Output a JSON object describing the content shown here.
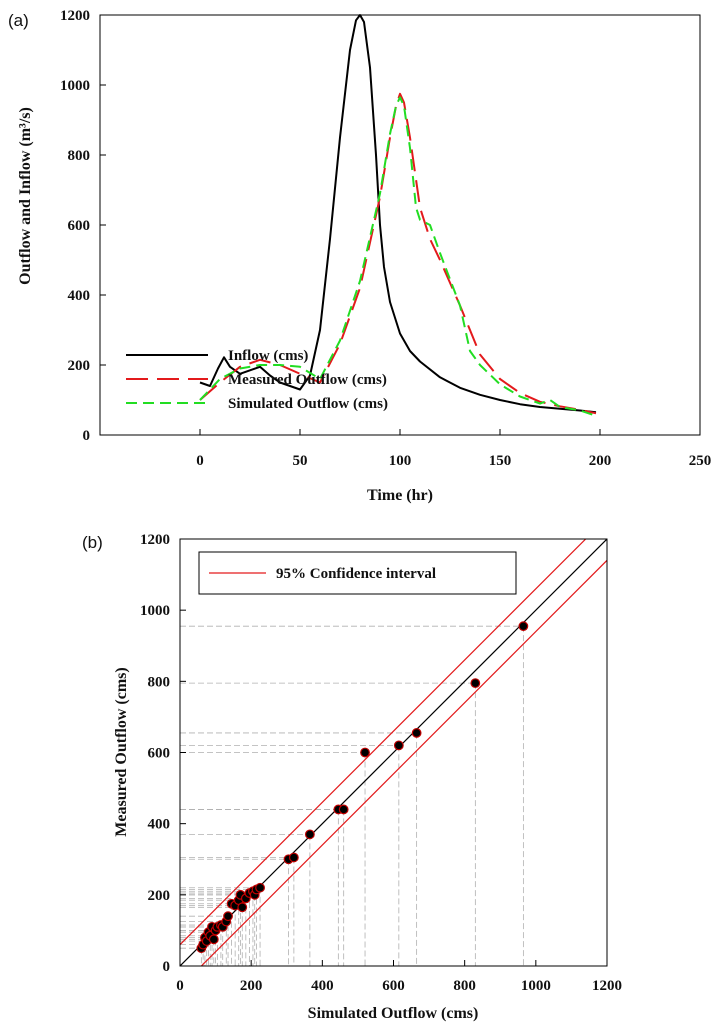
{
  "chart_data": [
    {
      "panel_label": "(a)",
      "type": "line",
      "xlabel": "Time (hr)",
      "ylabel": "Outflow and Inflow (m³/s)",
      "xlim": [
        -50,
        250
      ],
      "ylim": [
        0,
        1200
      ],
      "xticks": [
        0,
        50,
        100,
        150,
        200,
        250
      ],
      "yticks": [
        0,
        200,
        400,
        600,
        800,
        1000,
        1200
      ],
      "grid": false,
      "legend": "bottom-left",
      "series": [
        {
          "name": "Inflow (cms)",
          "color": "#000000",
          "style": "solid",
          "x": [
            0,
            5,
            9,
            12,
            15,
            20,
            25,
            30,
            35,
            40,
            45,
            50,
            55,
            60,
            65,
            70,
            75,
            78,
            80,
            82,
            85,
            88,
            90,
            92,
            95,
            100,
            105,
            110,
            120,
            130,
            140,
            150,
            160,
            170,
            180,
            190,
            198
          ],
          "y": [
            150,
            140,
            190,
            222,
            195,
            175,
            185,
            195,
            170,
            150,
            140,
            130,
            170,
            300,
            560,
            850,
            1100,
            1185,
            1200,
            1180,
            1050,
            800,
            600,
            480,
            380,
            290,
            240,
            210,
            165,
            135,
            115,
            100,
            88,
            80,
            75,
            70,
            65
          ]
        },
        {
          "name": "Measured Outflow (cms)",
          "color": "#e31a1c",
          "style": "long-dash",
          "x": [
            0,
            10,
            20,
            30,
            40,
            50,
            60,
            70,
            80,
            90,
            95,
            98,
            100,
            102,
            105,
            110,
            115,
            120,
            130,
            140,
            150,
            160,
            170,
            180,
            190,
            198
          ],
          "y": [
            100,
            150,
            195,
            215,
            200,
            175,
            150,
            260,
            420,
            680,
            850,
            940,
            975,
            950,
            850,
            650,
            560,
            500,
            370,
            230,
            160,
            120,
            95,
            82,
            72,
            62
          ]
        },
        {
          "name": "Simulated Outflow (cms)",
          "color": "#22dd22",
          "style": "dash",
          "x": [
            0,
            10,
            20,
            30,
            40,
            50,
            60,
            70,
            80,
            90,
            95,
            98,
            100,
            102,
            105,
            108,
            110,
            115,
            120,
            130,
            135,
            140,
            150,
            160,
            170,
            175,
            180,
            190,
            198
          ],
          "y": [
            100,
            160,
            190,
            200,
            200,
            195,
            160,
            270,
            440,
            690,
            860,
            940,
            965,
            940,
            820,
            650,
            615,
            600,
            520,
            370,
            240,
            200,
            145,
            110,
            90,
            100,
            80,
            70,
            55
          ]
        }
      ]
    },
    {
      "panel_label": "(b)",
      "type": "scatter",
      "xlabel": "Simulated Outflow (cms)",
      "ylabel": "Measured Outflow (cms)",
      "xlim": [
        0,
        1200
      ],
      "ylim": [
        0,
        1200
      ],
      "xticks": [
        0,
        200,
        400,
        600,
        800,
        1000,
        1200
      ],
      "yticks": [
        0,
        200,
        400,
        600,
        800,
        1000,
        1200
      ],
      "grid": false,
      "legend": "top-left",
      "legend_entries": [
        "95% Confidence interval"
      ],
      "point_color": "#000000",
      "point_edge_color": "#c00000",
      "fit_line_color": "#000000",
      "ci_line_color": "#e31a1c",
      "guide_line_color": "#b0b0b0",
      "fit_line": {
        "slope": 1.0,
        "intercept": 0
      },
      "confidence_offset": 60,
      "points": [
        {
          "x": 60,
          "y": 50
        },
        {
          "x": 65,
          "y": 60
        },
        {
          "x": 70,
          "y": 80
        },
        {
          "x": 75,
          "y": 70
        },
        {
          "x": 80,
          "y": 95
        },
        {
          "x": 85,
          "y": 85
        },
        {
          "x": 90,
          "y": 110
        },
        {
          "x": 95,
          "y": 75
        },
        {
          "x": 100,
          "y": 100
        },
        {
          "x": 105,
          "y": 110
        },
        {
          "x": 115,
          "y": 115
        },
        {
          "x": 120,
          "y": 110
        },
        {
          "x": 130,
          "y": 125
        },
        {
          "x": 135,
          "y": 140
        },
        {
          "x": 145,
          "y": 175
        },
        {
          "x": 155,
          "y": 170
        },
        {
          "x": 165,
          "y": 185
        },
        {
          "x": 170,
          "y": 200
        },
        {
          "x": 175,
          "y": 165
        },
        {
          "x": 185,
          "y": 190
        },
        {
          "x": 195,
          "y": 205
        },
        {
          "x": 205,
          "y": 210
        },
        {
          "x": 210,
          "y": 200
        },
        {
          "x": 215,
          "y": 215
        },
        {
          "x": 225,
          "y": 220
        },
        {
          "x": 305,
          "y": 300
        },
        {
          "x": 320,
          "y": 305
        },
        {
          "x": 365,
          "y": 370
        },
        {
          "x": 445,
          "y": 440
        },
        {
          "x": 460,
          "y": 440
        },
        {
          "x": 520,
          "y": 600
        },
        {
          "x": 615,
          "y": 620
        },
        {
          "x": 665,
          "y": 655
        },
        {
          "x": 830,
          "y": 795
        },
        {
          "x": 965,
          "y": 955
        }
      ]
    }
  ]
}
